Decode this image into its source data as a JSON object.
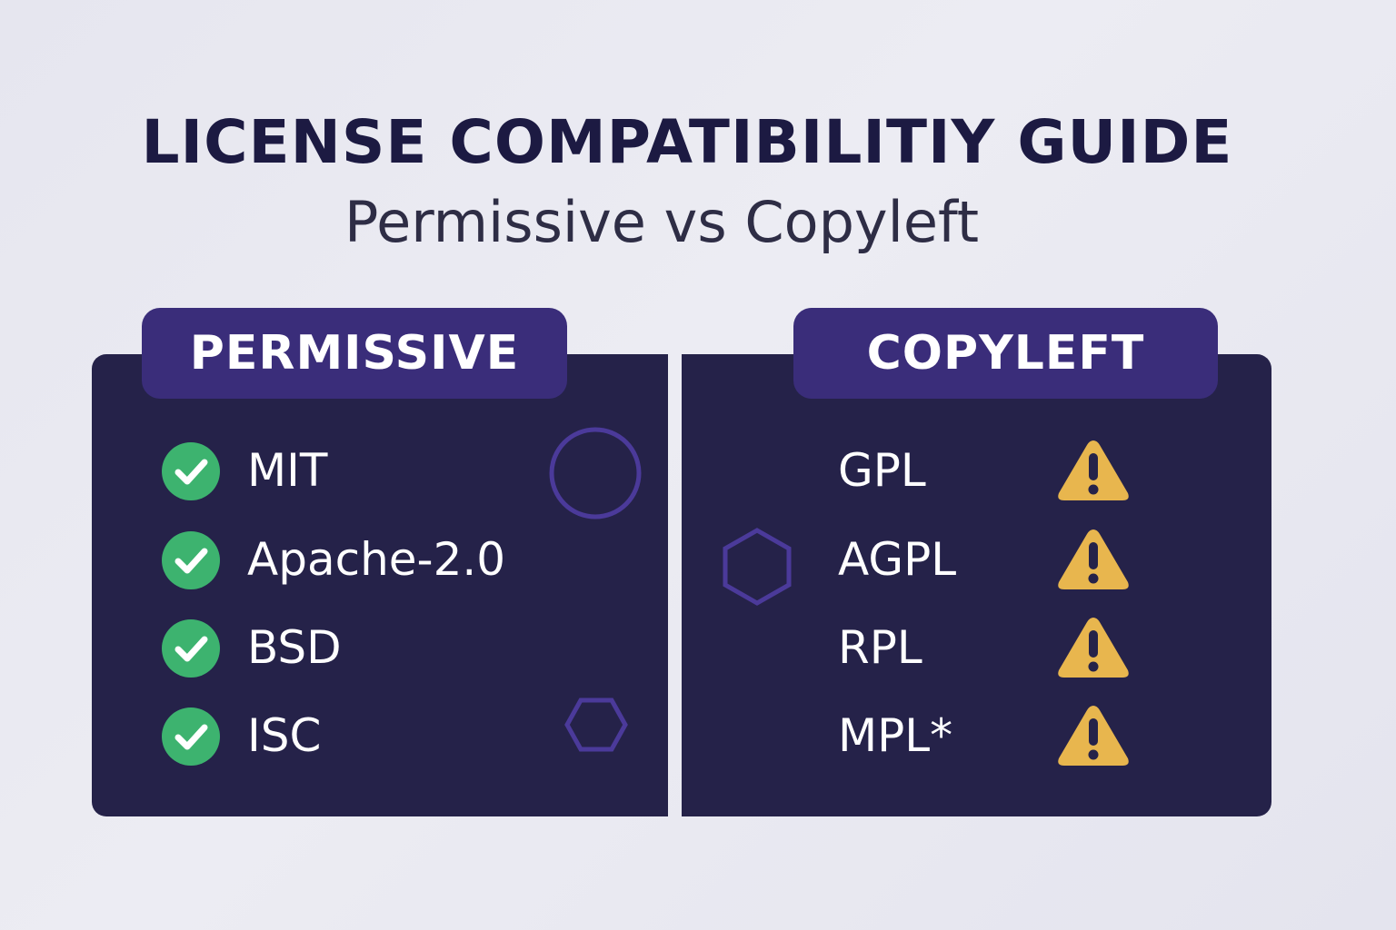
{
  "header": {
    "title": "LICENSE COMPATIBILITIY GUIDE",
    "subtitle": "Permissive vs Copyleft"
  },
  "permissive": {
    "heading": "PERMISSIVE",
    "icon": "check-circle-icon",
    "items": [
      "MIT",
      "Apache-2.0",
      "BSD",
      "ISC"
    ]
  },
  "copyleft": {
    "heading": "COPYLEFT",
    "icon": "warning-triangle-icon",
    "items": [
      "GPL",
      "AGPL",
      "RPL",
      "MPL*"
    ]
  },
  "colors": {
    "panel": "#252249",
    "tab": "#3a2d7a",
    "check": "#3db36f",
    "warning": "#e8b64e",
    "accent_outline": "#4b3a9a",
    "title": "#1c1a42"
  }
}
